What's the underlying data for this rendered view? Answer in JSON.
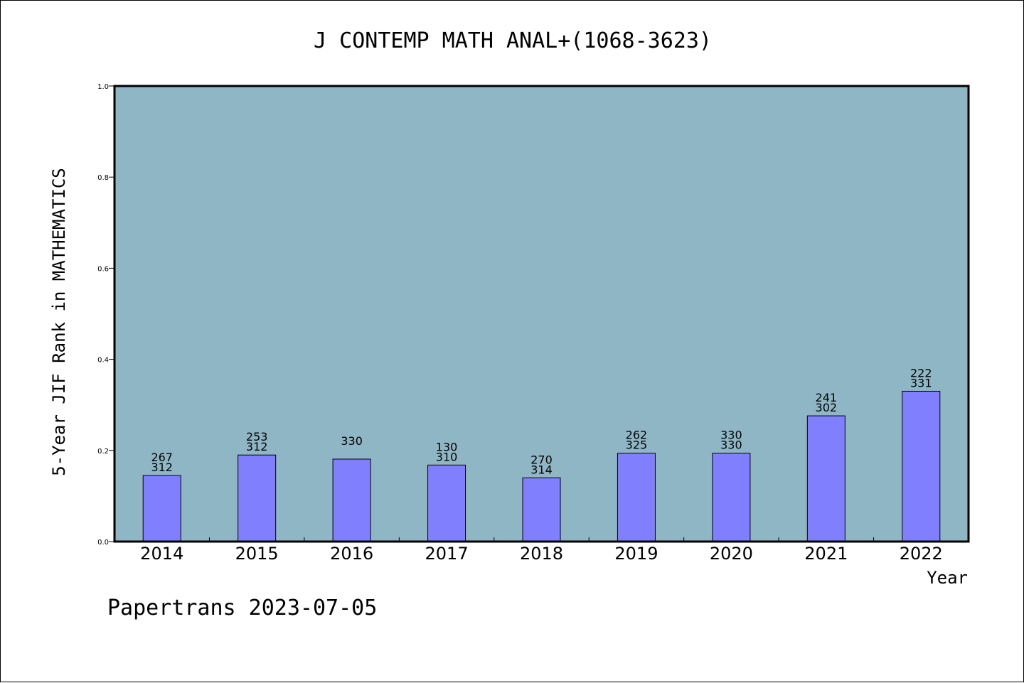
{
  "chart_data": {
    "type": "bar",
    "title": "J CONTEMP MATH ANAL+(1068-3623)",
    "xlabel": "Year",
    "ylabel": "5-Year JIF Rank in MATHEMATICS",
    "ylim": [
      0,
      1.0
    ],
    "yticks": [
      "0.0",
      "0.2",
      "0.4",
      "0.6",
      "0.8",
      "1.0"
    ],
    "categories": [
      "2014",
      "2015",
      "2016",
      "2017",
      "2018",
      "2019",
      "2020",
      "2021",
      "2022"
    ],
    "values": [
      0.145,
      0.19,
      0.181,
      0.168,
      0.14,
      0.194,
      0.194,
      0.276,
      0.33
    ],
    "labels_top": [
      "267",
      "253",
      "",
      "130",
      "270",
      "262",
      "330",
      "241",
      "222"
    ],
    "labels_bottom": [
      "312",
      "312",
      "330",
      "310",
      "314",
      "325",
      "330",
      "302",
      "331"
    ],
    "grid": false,
    "colors": {
      "plot_bg": "#8fb6c4",
      "bar_fill": "#8080ff",
      "bar_edge": "#000000"
    }
  },
  "footer": {
    "text": "Papertrans 2023-07-05"
  }
}
